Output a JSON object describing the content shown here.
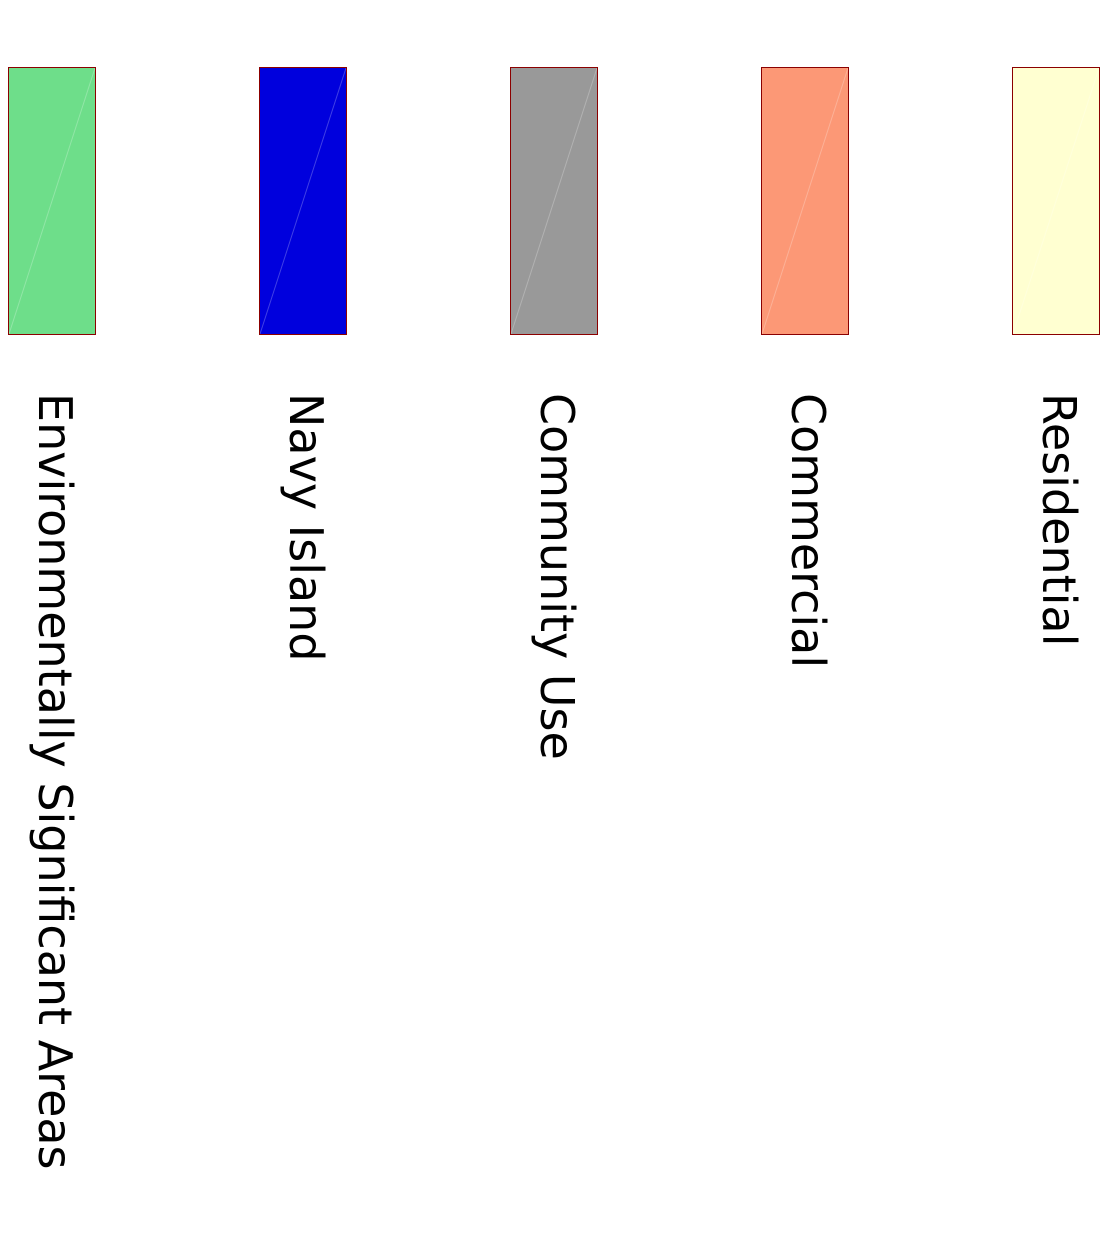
{
  "legend": {
    "items": [
      {
        "label": "Environmentally Significant Areas",
        "color": "#6ede8a"
      },
      {
        "label": "Navy Island",
        "color": "#0000dd"
      },
      {
        "label": "Community Use",
        "color": "#999999"
      },
      {
        "label": "Commercial",
        "color": "#fc9876"
      },
      {
        "label": "Residential",
        "color": "#ffffd1"
      }
    ],
    "border_color": "#8b0000"
  }
}
